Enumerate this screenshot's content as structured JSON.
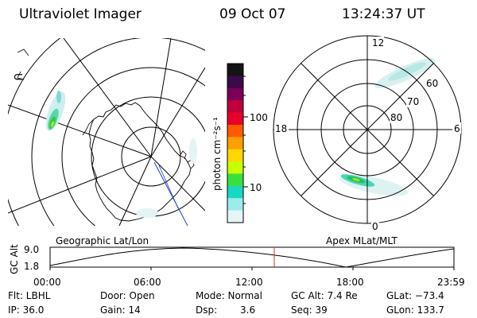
{
  "header": {
    "instrument": "Ultraviolet Imager",
    "date": "09 Oct 07",
    "time": "13:24:37 UT"
  },
  "colorbar": {
    "label": "photon cm⁻²s⁻¹",
    "ticks": [
      "100",
      "10"
    ],
    "colors": [
      "#141414",
      "#3b0a4a",
      "#7a0058",
      "#c0003a",
      "#e8002a",
      "#ff5a00",
      "#ff9f00",
      "#ffd800",
      "#c8ff00",
      "#39e03c",
      "#18d8c2",
      "#9cecec",
      "#e6f6f6"
    ]
  },
  "geo_map": {
    "label": "Geographic Lat/Lon",
    "corner_glyph": "U"
  },
  "polar_plot": {
    "label": "Apex MLat/MLT",
    "mlt_labels": {
      "top": "12",
      "left": "18",
      "right": "6",
      "bottom": "0"
    },
    "lat_labels": [
      "60",
      "70",
      "80"
    ]
  },
  "altitude_plot": {
    "ylabel": "GC Alt",
    "y_ticks": [
      "9.0",
      "1.8"
    ],
    "x_ticks": [
      "00:00",
      "06:00",
      "12:00",
      "18:00",
      "23:59"
    ],
    "current_time_marker_color": "#e0301e"
  },
  "status": {
    "flt": "Flt: LBHL",
    "ip": "IP: 36.0",
    "door": "Door: Open",
    "gain": "Gain: 14",
    "mode": "Mode: Normal",
    "dsp_label": "Dsp:",
    "dsp_value": "3.6",
    "gc_alt": "GC Alt: 7.4 Re",
    "seq": "Seq: 39",
    "glat": "GLat: −73.4",
    "glon": "GLon: 133.7"
  }
}
